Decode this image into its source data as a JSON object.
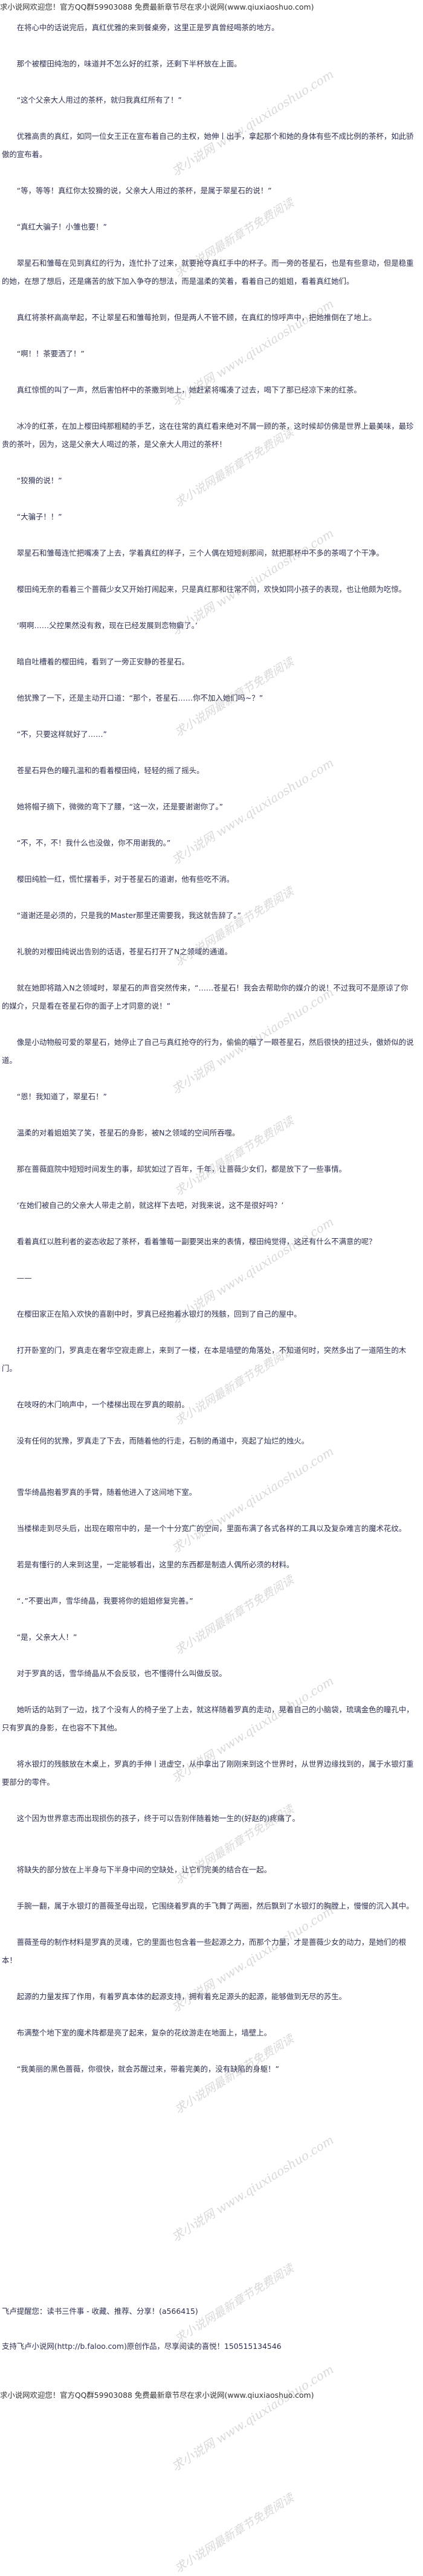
{
  "header_banner": "求小说网欢迎您！官方QQ群59903088 免费最新章节尽在求小说网(www.qiuxiaoshuo.com)",
  "paragraphs": [
    "在将心中的话说完后，真红优雅的来到餐桌旁，这里正是罗真曾经喝茶的地方。",
    "那个被樱田纯泡的，味道并不怎么好的红茶，还剩下半杯放在上面。",
    "“这个父亲大人用过的茶杯，就归我真红所有了！”",
    "优雅高贵的真红，如同一位女王正在宣布着自己的主权，她伸丨出手，拿起那个和她的身体有些不成比例的茶杯，如此骄傲的宣布着。",
    "“等，等等！真红你太狡猾的说，父亲大人用过的茶杯，是属于翠星石的说！”",
    "“真红大骗子！小雏也要！”",
    "翠星石和雏莓在见到真红的行为，连忙扑了过来，就要抢夺真红手中的杯子。而一旁的苍星石，也是有些意动，但是稳重的她，在想了想后，还是痛苦的放下加入争夺的想法，而是温柔的笑着，看着自己的姐姐，看着真红她们。",
    "真红将茶杯高高举起，不让翠星石和雏莓抢到，但是两人不管不顾，在真红的惊呼声中，把她推倒在了地上。",
    "“啊！！茶要洒了！”",
    "真红惊慌的叫了一声，然后害怕杯中的茶撒到地上，她赶紧将嘴凑了过去，喝下了那已经凉下来的红茶。",
    "冰冷的红茶，在加上樱田纯那粗糙的手艺，这在往常的真红看来绝对不屑一顾的茶，这时候却仿佛是世界上最美味，最珍贵的茶叶，因为，这是父亲大人喝过的茶，是父亲大人用过的茶杯！",
    "“狡猾的说！”",
    "“大骗子！！”",
    "翠星石和雏莓连忙把嘴凑了上去，学着真红的样子，三个人偶在短短刹那间，就把那杯中不多的茶喝了个干净。",
    "樱田纯无奈的看着三个蔷薇少女又开始打闹起来，只是真红那和往常不同，欢快如同小孩子的表现，也让他颇为吃惊。",
    "‘啊啊……父控果然没有救，现在已经发展到恋物癖了。’",
    "暗自吐槽着的樱田纯，看到了一旁正安静的苍星石。",
    "他犹豫了一下，还是主动开口道：“那个，苍星石……你不加入她们吗~？”",
    "“不，只要这样就好了……”",
    "苍星石异色的瞳孔温和的看着樱田纯，轻轻的摇了摇头。",
    "她将帽子摘下，微微的弯下了腰，“这一次，还是要谢谢你了。”",
    "“不，不，不！我什么也没做，你不用谢我的。”",
    "樱田纯脸一红，慌忙摆着手，对于苍星石的道谢，他有些吃不消。",
    "“道谢还是必须的，只是我的Master那里还需要我，我这就告辞了。”",
    "礼貌的对樱田纯说出告别的话语，苍星石打开了N之领域的通道。",
    "就在她即将踏入N之领域时，翠星石的声音突然传来，“……苍星石！我会去帮助你的媒介的说！不过我可不是原谅了你的媒介，只是看在苍星石你的面子上才同意的说！”",
    "像是小动物般可爱的翠星石，她停止了自己与真红抢夺的行为，偷偷的瞄了一眼苍星石，然后很快的扭过头，傲娇似的说道。",
    "“恩！我知道了，翠星石！”",
    "温柔的对着姐姐笑了笑，苍星石的身影，被N之领域的空间所吞噬。",
    "那在蔷薇庭院中短短时间发生的事，却犹如过了百年，千年，让蔷薇少女们，都是放下了一些事情。",
    "‘在她们被自己的父亲大人带走之前，就这样下去吧，对我来说，这不是很好吗？’",
    "看着真红以胜利者的姿态收起了茶杯，看着雏莓一副要哭出来的表情，樱田纯觉得，这还有什么不满意的呢？",
    "——",
    "在樱田家正在陷入欢快的喜剧中时，罗真已经抱着水银灯的残骸，回到了自己的屋中。",
    "打开卧室的门，罗真走在奢华空寂走廊上，来到了一楼，在本是墙壁的角落处，不知道何时，突然多出了一道陌生的木门。",
    "在吱呀的木门响声中，一个楼梯出现在罗真的眼前。",
    "没有任何的犹豫，罗真走了下去，而随着他的行走，石制的甬道中，亮起了灿烂的烛火。",
    "雪华绮晶抱着罗真的手臂，随着他进入了这间地下室。",
    "当楼梯走到尽头后，出现在眼帘中的，是一个十分宽广的空间，里面布满了各式各样的工具以及复杂难言的魔术花纹。",
    "若是有懂行的人来到这里，一定能够看出，这里的东西都是制造人偶所必须的材料。",
    "“．”不要出声，雪华绮晶，我要将你的姐姐修复完善。”",
    "“是，父亲大人！”",
    "对于罗真的话，雪华绮晶从不会反驳，也不懂得什么叫做反驳。",
    "她听话的站到了一边，找了个没有人的椅子坐了上去，就这样随着罗真的走动，晃着自己的小脑袋，琉璃金色的瞳孔中，只有罗真的身影，在也容不下其他。",
    "将水银灯的残骸放在木桌上，罗真的手伸丨进虚空，从中拿出了刚刚来到这个世界时，从世界边缘找到的，属于水银灯重要部分的零件。",
    "这个因为世界意志而出现损伤的孩子，终于可以告别伴随着她一生的(好赵的)疼痛了。",
    "将缺失的部分放在上半身与下半身中间的空缺处，让它们完美的结合在一起。",
    "手腕一翻，属于水银灯的蔷薇圣母出现，它围绕着罗真的手飞舞了两圈，然后飘到了水银灯的胸膛上，慢慢的沉入其中。",
    "蔷薇圣母的制作材料是罗真的灵魂，它的里面也包含着一些起源之力，而那个力量，才是蔷薇少女的动力，是她们的根本！",
    "起源的力量发挥了作用，有着罗真本体的起源支持，拥有着充足源头的起源，能够做到无尽的苏生。",
    "布满整个地下室的魔术阵都是亮了起来，复杂的花纹游走在地面上，墙壁上。",
    "“我美丽的黑色蔷薇，你很快，就会苏醒过来，带着完美的，没有缺陷的身躯！”"
  ],
  "footer": {
    "reminder": "飞卢提醒您：读书三件事 - 收藏、推荐、分享！(a566415)",
    "support": "支持飞卢小说网(http://b.faloo.com)原创作品，尽享阅读的喜悦！150515134546",
    "banner": "求小说网欢迎您！官方QQ群59903088 免费最新章节尽在求小说网(www.qiuxiaoshuo.com)"
  },
  "watermarks": {
    "site": "求小说网 www.qiuxiaoshuo.com",
    "slogan": "求小说网最新章节免费阅读"
  },
  "colors": {
    "text": "#2c3050",
    "watermark": "#9a9aa4",
    "background": "#ffffff"
  }
}
